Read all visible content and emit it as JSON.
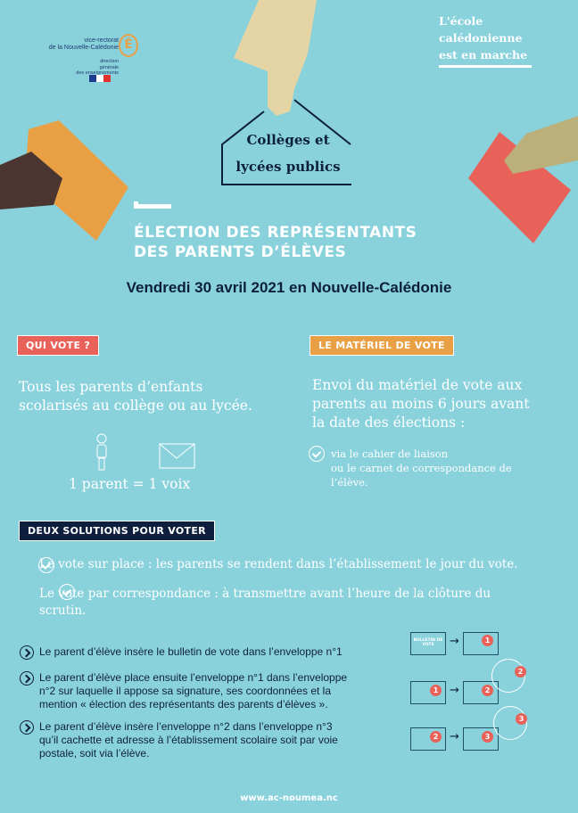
{
  "logo": {
    "line1": "vice-rectorat",
    "line2": "de la Nouvelle-Calédonie",
    "line3": "direction",
    "line4": "générale",
    "line5": "des enseignements",
    "mark": "É"
  },
  "slogan": [
    "L'école",
    "calédonienne",
    "est en marche"
  ],
  "house": {
    "line1": "Collèges et",
    "line2": "lycées publics"
  },
  "title": {
    "line1": "ÉLECTION DES REPRÉSENTANTS",
    "line2": "DES PARENTS D’ÉLÈVES"
  },
  "date": "Vendredi 30 avril 2021 en Nouvelle-Calédonie",
  "who": {
    "tag": "QUI VOTE ?",
    "text1": "Tous les parents d’enfants",
    "text2": "scolarisés au collège ou au lycée.",
    "equation": "1 parent  =  1 voix",
    "tag_color": "#e8625a"
  },
  "material": {
    "tag": "LE MATÉRIEL DE VOTE",
    "text1": "Envoi du matériel de vote aux",
    "text2": "parents au moins 6 jours avant",
    "text3": "la date des élections :",
    "check1": "via le cahier de liaison",
    "check2": "ou le carnet de correspondance de",
    "check3": "l’élève.",
    "tag_color": "#e9a045"
  },
  "solutions": {
    "tag": "DEUX SOLUTIONS POUR VOTER",
    "item1": "Le vote sur place : les parents se rendent dans l’établissement le jour du vote.",
    "item2a": "Le vote par correspondance : à transmettre avant l’heure de la clôture du",
    "item2b": "scrutin.",
    "tag_color": "#0e1f3d"
  },
  "steps": [
    {
      "lines": [
        "Le parent d’élève insère le bulletin de vote dans l’enveloppe n°1"
      ]
    },
    {
      "lines": [
        "Le parent d’élève place ensuite l’enveloppe n°1 dans l’enveloppe",
        "n°2 sur laquelle il appose sa signature, ses coordonnées et la",
        "mention « élection des représentants des parents d’élèves »."
      ]
    },
    {
      "lines": [
        "Le parent d’élève insère l’enveloppe n°2 dans l’enveloppe n°3",
        "qu’il cachette et adresse à l’établissement scolaire soit par voie",
        "postale, soit via l’élève."
      ]
    }
  ],
  "diagram": {
    "ballot": "BULLETIN DE VOTE",
    "n1": "1",
    "n2": "2",
    "n3": "3",
    "arrow": "→"
  },
  "footer": "www.ac-noumea.nc",
  "colors": {
    "background": "#89d2dc",
    "navy": "#0e1f3d",
    "red": "#e8625a",
    "orange": "#e9a045"
  }
}
